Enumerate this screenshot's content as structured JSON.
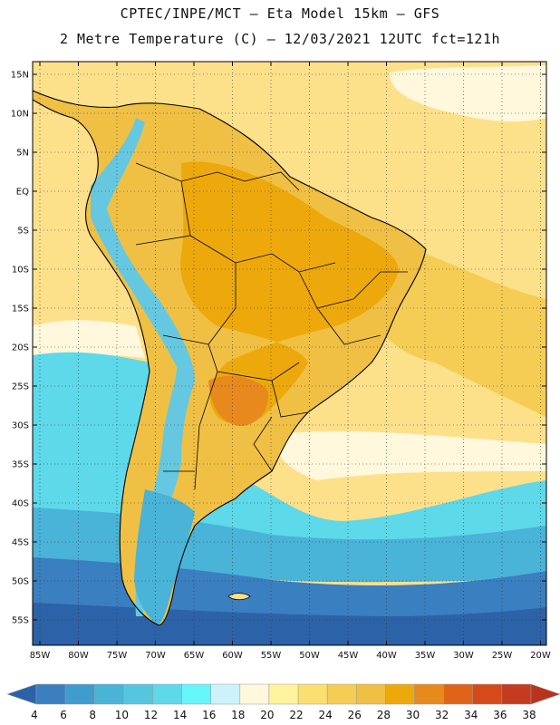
{
  "header": {
    "line1": "CPTEC/INPE/MCT –  Eta Model 15km – GFS",
    "line2": "2 Metre Temperature (C) – 12/03/2021 12UTC fct=121h"
  },
  "axes": {
    "lat_labels": [
      "15N",
      "10N",
      "5N",
      "EQ",
      "5S",
      "10S",
      "15S",
      "20S",
      "25S",
      "30S",
      "35S",
      "40S",
      "45S",
      "50S",
      "55S"
    ],
    "lon_labels": [
      "85W",
      "80W",
      "75W",
      "70W",
      "65W",
      "60W",
      "55W",
      "50W",
      "45W",
      "40W",
      "35W",
      "30W",
      "25W",
      "20W"
    ]
  },
  "colorbar": {
    "labels": [
      "4",
      "6",
      "8",
      "10",
      "12",
      "14",
      "16",
      "18",
      "20",
      "22",
      "24",
      "26",
      "28",
      "30",
      "32",
      "34",
      "36",
      "38"
    ],
    "colors": [
      "#2c63a8",
      "#3a7fc0",
      "#3f9ccd",
      "#4ab3d8",
      "#56c6df",
      "#5dd9e9",
      "#66f6fc",
      "#ccf2fb",
      "#fff8dc",
      "#fff39e",
      "#fcdf71",
      "#f5cd55",
      "#f0c044",
      "#eda90c",
      "#e8891e",
      "#e0631a",
      "#d44a1a",
      "#c43b1f",
      "#b8341c"
    ]
  },
  "map_colors": {
    "ocean_warm": "#fde08a",
    "ocean_hot": "#f5cd55",
    "pale": "#fff8dc",
    "cyan": "#5dd9e9",
    "teal": "#4ab3d8",
    "blue": "#3a7fc0",
    "dark_blue": "#2c63a8",
    "land_warm": "#f0c044",
    "land_hot": "#eda90c",
    "land_hottest": "#e8891e",
    "andes": "#66c8e0",
    "border": "#000000"
  }
}
